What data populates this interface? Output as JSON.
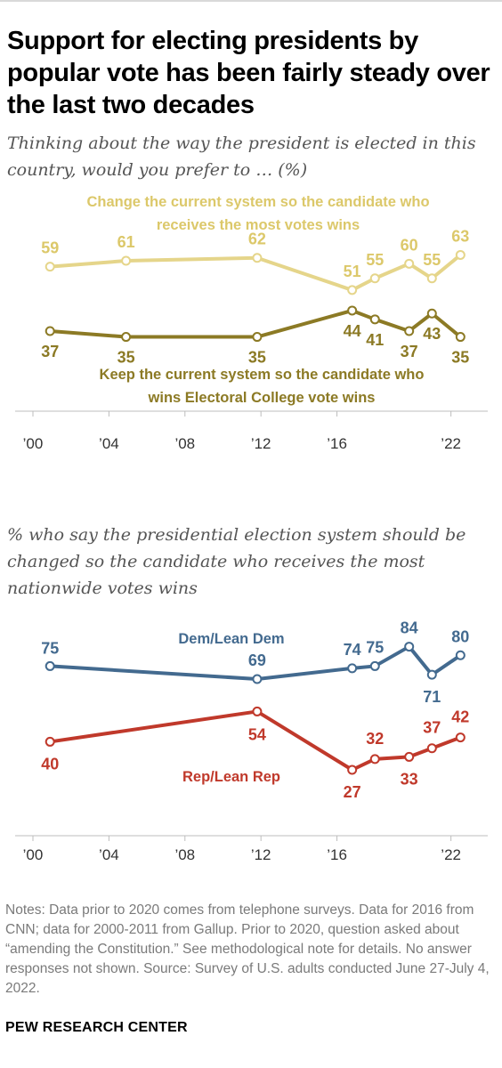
{
  "title": "Support for electing presidents by popular vote has been fairly steady over the last two decades",
  "subtitle1": "Thinking about the way the president is elected in this country, would you prefer to … (%)",
  "subtitle2": "% who say the presidential election system should be changed so the candidate who receives the most nationwide votes wins",
  "notes": "Notes: Data prior to 2020 comes from telephone surveys. Data for 2016 from CNN; data for 2000-2011 from Gallup. Prior to 2020, question asked about “amending the Constitution.” See methodological note for details. No answer responses not shown. Source: Survey of U.S. adults conducted June 27-July 4, 2022.",
  "footer": "PEW RESEARCH CENTER",
  "chart_data": [
    {
      "type": "line",
      "xlim": [
        2000,
        2023
      ],
      "ylim": [
        30,
        68
      ],
      "grid": false,
      "x_ticks": [
        {
          "value": 2000,
          "label": "’00"
        },
        {
          "value": 2004,
          "label": "’04"
        },
        {
          "value": 2008,
          "label": "’08"
        },
        {
          "value": 2012,
          "label": "’12"
        },
        {
          "value": 2016,
          "label": "’16"
        },
        {
          "value": 2022,
          "label": "’22"
        }
      ],
      "series": [
        {
          "name": "Change the current system so the candidate who receives the most votes wins",
          "color": "#e5d58a",
          "label_color": "#dcc86a",
          "label_side": "above",
          "x": [
            2000.9,
            2004.9,
            2011.8,
            2016.8,
            2018.0,
            2019.8,
            2021.0,
            2022.5
          ],
          "y": [
            59,
            61,
            62,
            51,
            55,
            60,
            55,
            63
          ]
        },
        {
          "name": "Keep the current system so the candidate who wins Electoral College vote wins",
          "color": "#8c7a25",
          "label_color": "#8c7a25",
          "label_side": "below",
          "x": [
            2000.9,
            2004.9,
            2011.8,
            2016.8,
            2018.0,
            2019.8,
            2021.0,
            2022.5
          ],
          "y": [
            37,
            35,
            35,
            44,
            41,
            37,
            43,
            35
          ]
        }
      ]
    },
    {
      "type": "line",
      "xlim": [
        2000,
        2023
      ],
      "ylim": [
        20,
        90
      ],
      "grid": false,
      "x_ticks": [
        {
          "value": 2000,
          "label": "’00"
        },
        {
          "value": 2004,
          "label": "’04"
        },
        {
          "value": 2008,
          "label": "’08"
        },
        {
          "value": 2012,
          "label": "’12"
        },
        {
          "value": 2016,
          "label": "’16"
        },
        {
          "value": 2022,
          "label": "’22"
        }
      ],
      "series": [
        {
          "name": "Dem/Lean Dem",
          "color": "#436a8f",
          "x": [
            2000.9,
            2011.8,
            2016.8,
            2018.0,
            2019.8,
            2021.0,
            2022.5
          ],
          "y": [
            75,
            69,
            74,
            75,
            84,
            71,
            80
          ]
        },
        {
          "name": "Rep/Lean Rep",
          "color": "#c0392b",
          "x": [
            2000.9,
            2011.8,
            2016.8,
            2018.0,
            2019.8,
            2021.0,
            2022.5
          ],
          "y": [
            40,
            54,
            27,
            32,
            33,
            37,
            42
          ]
        }
      ]
    }
  ]
}
